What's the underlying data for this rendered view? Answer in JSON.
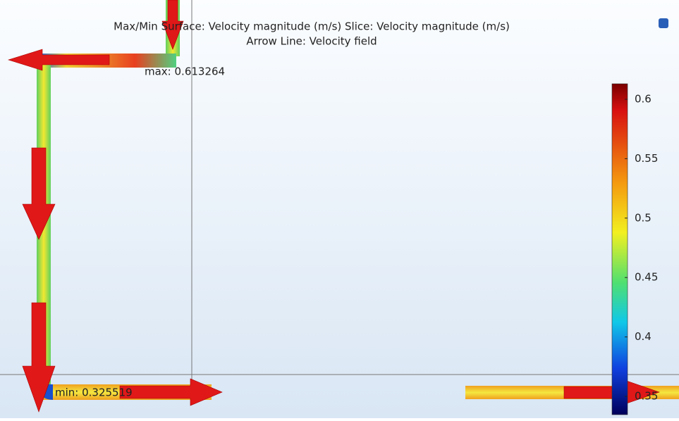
{
  "title": [
    "Max/Min Surface: Velocity magnitude (m/s)  Slice: Velocity magnitude (m/s)",
    "Arrow Line: Velocity field"
  ],
  "max_label": "max: 0.613264",
  "min_label": "min: 0.325519",
  "colorbar": {
    "ticks": [
      0.6,
      0.55,
      0.5,
      0.45,
      0.4,
      0.35
    ]
  }
}
